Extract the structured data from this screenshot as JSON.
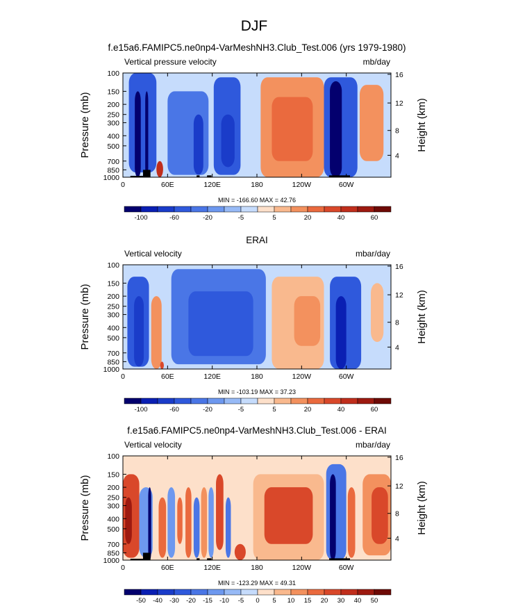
{
  "main_title": "DJF",
  "chart_data": [
    {
      "type": "heatmap",
      "title": "f.e15a6.FAMIPC5.ne0np4-VarMeshNH3.Club_Test.006 (yrs 1979-1980)",
      "left_string": "Vertical pressure velocity",
      "units": "mb/day",
      "ylabel": "Pressure (mb)",
      "ylabel_right": "Height (km)",
      "stats": "MIN = -166.60  MAX =  42.76",
      "x_ticks": [
        "0",
        "60E",
        "120E",
        "180",
        "120W",
        "60W"
      ],
      "x_tick_lon": [
        0,
        60,
        120,
        180,
        240,
        300
      ],
      "xlim": [
        0,
        360
      ],
      "y_ticks": [
        "100",
        "150",
        "200",
        "250",
        "300",
        "400",
        "500",
        "700",
        "850",
        "1000"
      ],
      "y_tick_p": [
        100,
        150,
        200,
        250,
        300,
        400,
        500,
        700,
        850,
        1000
      ],
      "y_scale": "log",
      "ylim": [
        100,
        1000
      ],
      "right_ticks": [
        "16",
        "12",
        "8",
        "4"
      ],
      "right_tick_p": [
        103,
        194,
        356,
        616
      ],
      "colorbar": {
        "levels": [
          "-100",
          "-60",
          "-20",
          "-5",
          "5",
          "20",
          "40",
          "60"
        ],
        "tick_after_box": [
          1,
          3,
          5,
          7,
          9,
          11,
          13,
          15
        ],
        "colors": [
          "#03006e",
          "#0a1fb3",
          "#1a3cc9",
          "#2f59dc",
          "#4a76e6",
          "#6d98ef",
          "#97baf6",
          "#c6dcfc",
          "#fde0ca",
          "#f9b98e",
          "#f3915e",
          "#ea6a3e",
          "#d9482a",
          "#c02e1c",
          "#9d1a10",
          "#6e0a06"
        ]
      },
      "features": [
        {
          "lon": [
            8,
            45
          ],
          "p": [
            100,
            900
          ],
          "v": -55
        },
        {
          "lon": [
            16,
            24
          ],
          "p": [
            150,
            1000
          ],
          "v": -140
        },
        {
          "lon": [
            30,
            34
          ],
          "p": [
            150,
            1000
          ],
          "v": -120
        },
        {
          "lon": [
            60,
            115
          ],
          "p": [
            150,
            950
          ],
          "v": -38
        },
        {
          "lon": [
            95,
            108
          ],
          "p": [
            250,
            950
          ],
          "v": -65
        },
        {
          "lon": [
            122,
            158
          ],
          "p": [
            110,
            950
          ],
          "v": -45
        },
        {
          "lon": [
            132,
            150
          ],
          "p": [
            250,
            800
          ],
          "v": -70
        },
        {
          "lon": [
            185,
            270
          ],
          "p": [
            110,
            1000
          ],
          "v": 12
        },
        {
          "lon": [
            200,
            255
          ],
          "p": [
            170,
            700
          ],
          "v": 30
        },
        {
          "lon": [
            45,
            54
          ],
          "p": [
            700,
            1000
          ],
          "v": 45
        },
        {
          "lon": [
            270,
            315
          ],
          "p": [
            110,
            1000
          ],
          "v": -55
        },
        {
          "lon": [
            278,
            294
          ],
          "p": [
            120,
            1000
          ],
          "v": -130
        },
        {
          "lon": [
            318,
            350
          ],
          "p": [
            130,
            700
          ],
          "v": 14
        }
      ],
      "topography": [
        {
          "lon": [
            10,
            30
          ],
          "p": 970
        },
        {
          "lon": [
            27,
            37
          ],
          "p": 850
        },
        {
          "lon": [
            99,
            103
          ],
          "p": 960
        },
        {
          "lon": [
            113,
            119
          ],
          "p": 960
        },
        {
          "lon": [
            277,
            305
          ],
          "p": 960
        }
      ]
    },
    {
      "type": "heatmap",
      "title": "ERAI",
      "left_string": "Vertical velocity",
      "units": "mbar/day",
      "ylabel": "Pressure (mb)",
      "ylabel_right": "Height (km)",
      "stats": "MIN = -103.19  MAX =  37.23",
      "x_ticks": [
        "0",
        "60E",
        "120E",
        "180",
        "120W",
        "60W"
      ],
      "x_tick_lon": [
        0,
        60,
        120,
        180,
        240,
        300
      ],
      "xlim": [
        0,
        360
      ],
      "y_ticks": [
        "100",
        "150",
        "200",
        "250",
        "300",
        "400",
        "500",
        "700",
        "850",
        "1000"
      ],
      "y_tick_p": [
        100,
        150,
        200,
        250,
        300,
        400,
        500,
        700,
        850,
        1000
      ],
      "y_scale": "log",
      "ylim": [
        100,
        1000
      ],
      "right_ticks": [
        "16",
        "12",
        "8",
        "4"
      ],
      "right_tick_p": [
        103,
        194,
        356,
        616
      ],
      "colorbar": {
        "levels": [
          "-100",
          "-60",
          "-20",
          "-5",
          "5",
          "20",
          "40",
          "60"
        ],
        "tick_after_box": [
          1,
          3,
          5,
          7,
          9,
          11,
          13,
          15
        ],
        "colors": [
          "#03006e",
          "#0a1fb3",
          "#1a3cc9",
          "#2f59dc",
          "#4a76e6",
          "#6d98ef",
          "#97baf6",
          "#c6dcfc",
          "#fde0ca",
          "#f9b98e",
          "#f3915e",
          "#ea6a3e",
          "#d9482a",
          "#c02e1c",
          "#9d1a10",
          "#6e0a06"
        ]
      },
      "features": [
        {
          "lon": [
            6,
            35
          ],
          "p": [
            130,
            950
          ],
          "v": -45
        },
        {
          "lon": [
            15,
            28
          ],
          "p": [
            200,
            950
          ],
          "v": -75
        },
        {
          "lon": [
            38,
            52
          ],
          "p": [
            200,
            1000
          ],
          "v": 20
        },
        {
          "lon": [
            50,
            55
          ],
          "p": [
            850,
            1000
          ],
          "v": 35
        },
        {
          "lon": [
            65,
            192
          ],
          "p": [
            110,
            900
          ],
          "v": -30
        },
        {
          "lon": [
            88,
            175
          ],
          "p": [
            180,
            750
          ],
          "v": -55
        },
        {
          "lon": [
            200,
            270
          ],
          "p": [
            130,
            1000
          ],
          "v": 8
        },
        {
          "lon": [
            230,
            265
          ],
          "p": [
            200,
            600
          ],
          "v": 16
        },
        {
          "lon": [
            278,
            320
          ],
          "p": [
            130,
            1000
          ],
          "v": -45
        },
        {
          "lon": [
            286,
            300
          ],
          "p": [
            200,
            1000
          ],
          "v": -80
        },
        {
          "lon": [
            333,
            350
          ],
          "p": [
            150,
            550
          ],
          "v": 8
        }
      ],
      "topography": []
    },
    {
      "type": "heatmap",
      "title": "f.e15a6.FAMIPC5.ne0np4-VarMeshNH3.Club_Test.006 - ERAI",
      "left_string": "Vertical velocity",
      "units": "mbar/day",
      "ylabel": "Pressure (mb)",
      "ylabel_right": "Height (km)",
      "stats": "MIN = -123.29  MAX =  49.31",
      "x_ticks": [
        "0",
        "60E",
        "120E",
        "180",
        "120W",
        "60W"
      ],
      "x_tick_lon": [
        0,
        60,
        120,
        180,
        240,
        300
      ],
      "xlim": [
        0,
        360
      ],
      "y_ticks": [
        "100",
        "150",
        "200",
        "250",
        "300",
        "400",
        "500",
        "700",
        "850",
        "1000"
      ],
      "y_tick_p": [
        100,
        150,
        200,
        250,
        300,
        400,
        500,
        700,
        850,
        1000
      ],
      "y_scale": "log",
      "ylim": [
        100,
        1000
      ],
      "right_ticks": [
        "16",
        "12",
        "8",
        "4"
      ],
      "right_tick_p": [
        103,
        194,
        356,
        616
      ],
      "colorbar": {
        "levels": [
          "-50",
          "-40",
          "-30",
          "-20",
          "-15",
          "-10",
          "-5",
          "0",
          "5",
          "10",
          "15",
          "20",
          "30",
          "40",
          "50"
        ],
        "tick_after_box": [
          1,
          2,
          3,
          4,
          5,
          6,
          7,
          8,
          9,
          10,
          11,
          12,
          13,
          14,
          15
        ],
        "colors": [
          "#03006e",
          "#0a1fb3",
          "#1a3cc9",
          "#2f59dc",
          "#4a76e6",
          "#6d98ef",
          "#97baf6",
          "#c6dcfc",
          "#fde0ca",
          "#f9b98e",
          "#f3915e",
          "#ea6a3e",
          "#d9482a",
          "#c02e1c",
          "#9d1a10",
          "#6e0a06"
        ]
      },
      "features": [
        {
          "lon": [
            0,
            360
          ],
          "p": [
            100,
            1000
          ],
          "v": 3
        },
        {
          "lon": [
            0,
            22
          ],
          "p": [
            150,
            950
          ],
          "v": 25
        },
        {
          "lon": [
            3,
            12
          ],
          "p": [
            250,
            700
          ],
          "v": 42
        },
        {
          "lon": [
            22,
            40
          ],
          "p": [
            200,
            950
          ],
          "v": -12
        },
        {
          "lon": [
            34,
            38
          ],
          "p": [
            200,
            1000
          ],
          "v": -55
        },
        {
          "lon": [
            48,
            58
          ],
          "p": [
            250,
            950
          ],
          "v": 16
        },
        {
          "lon": [
            60,
            70
          ],
          "p": [
            200,
            950
          ],
          "v": -10
        },
        {
          "lon": [
            73,
            80
          ],
          "p": [
            250,
            700
          ],
          "v": 18
        },
        {
          "lon": [
            84,
            92
          ],
          "p": [
            200,
            950
          ],
          "v": 16
        },
        {
          "lon": [
            95,
            103
          ],
          "p": [
            250,
            950
          ],
          "v": -15
        },
        {
          "lon": [
            105,
            113
          ],
          "p": [
            200,
            950
          ],
          "v": 14
        },
        {
          "lon": [
            115,
            122
          ],
          "p": [
            200,
            950
          ],
          "v": -14
        },
        {
          "lon": [
            125,
            135
          ],
          "p": [
            150,
            800
          ],
          "v": 28
        },
        {
          "lon": [
            138,
            145
          ],
          "p": [
            250,
            950
          ],
          "v": -15
        },
        {
          "lon": [
            150,
            165
          ],
          "p": [
            700,
            1000
          ],
          "v": 25
        },
        {
          "lon": [
            175,
            270
          ],
          "p": [
            150,
            1000
          ],
          "v": 10
        },
        {
          "lon": [
            190,
            255
          ],
          "p": [
            200,
            700
          ],
          "v": 22
        },
        {
          "lon": [
            273,
            300
          ],
          "p": [
            120,
            1000
          ],
          "v": -18
        },
        {
          "lon": [
            278,
            286
          ],
          "p": [
            150,
            1000
          ],
          "v": -80
        },
        {
          "lon": [
            302,
            312
          ],
          "p": [
            200,
            950
          ],
          "v": 16
        },
        {
          "lon": [
            322,
            360
          ],
          "p": [
            150,
            900
          ],
          "v": 14
        },
        {
          "lon": [
            334,
            356
          ],
          "p": [
            200,
            700
          ],
          "v": 26
        }
      ],
      "topography": [
        {
          "lon": [
            10,
            30
          ],
          "p": 970
        },
        {
          "lon": [
            27,
            37
          ],
          "p": 850
        },
        {
          "lon": [
            99,
            103
          ],
          "p": 960
        },
        {
          "lon": [
            113,
            119
          ],
          "p": 960
        },
        {
          "lon": [
            277,
            305
          ],
          "p": 960
        }
      ]
    }
  ]
}
